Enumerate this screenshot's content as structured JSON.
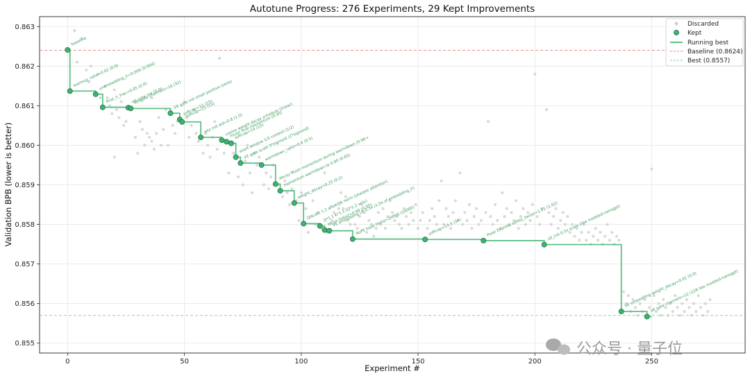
{
  "chart_data": {
    "type": "scatter",
    "title": "Autotune Progress: 276 Experiments, 29 Kept Improvements",
    "xlabel": "Experiment #",
    "ylabel": "Validation BPB (lower is better)",
    "xlim": [
      -12,
      290
    ],
    "ylim": [
      0.85475,
      0.86325
    ],
    "xticks": [
      0,
      50,
      100,
      150,
      200,
      250
    ],
    "yticks": [
      0.855,
      0.856,
      0.857,
      0.858,
      0.859,
      0.86,
      0.861,
      0.862,
      0.863
    ],
    "grid": true,
    "legend_position": "top-right",
    "legend": {
      "discarded": "Discarded",
      "kept": "Kept",
      "running_best": "Running best",
      "baseline": "Baseline (0.8624)",
      "best": "Best (0.8557)"
    },
    "baseline_value": 0.8624,
    "best_value": 0.8557,
    "colors": {
      "kept": "#3cb371",
      "running_best": "#5cbf86",
      "discarded": "#cccccc",
      "baseline_line": "#e88e8e",
      "best_line": "#7fcf9f"
    },
    "kept": [
      {
        "x": 0,
        "y": 0.86241,
        "label": "baseline"
      },
      {
        "x": 1,
        "y": 0.86137,
        "label": "warmup_ratio=0.02 (0.0)"
      },
      {
        "x": 12,
        "y": 0.86129,
        "label": "unembedding_lr=0.006 (0.004)"
      },
      {
        "x": 15,
        "y": 0.86096,
        "label": "final_lr_frac=0.05 (0.0)"
      },
      {
        "x": 26,
        "y": 0.86095,
        "label": "VE gate init (0.0)"
      },
      {
        "x": 27,
        "y": 0.86093,
        "label": "VE gate channels=16 (32)"
      },
      {
        "x": 44,
        "y": 0.86081,
        "label": "VE gate init small positive (sens)"
      },
      {
        "x": 48,
        "y": 0.86065,
        "label": "softcap=12 (15)"
      },
      {
        "x": 49,
        "y": 0.86059,
        "label": "softcap=15 (15)"
      },
      {
        "x": 57,
        "y": 0.8602,
        "label": "wte init std=0.8 (1.0)"
      },
      {
        "x": 66,
        "y": 0.86013,
        "label": "cosine weight decay schedule (linear)"
      },
      {
        "x": 68,
        "y": 0.86009,
        "label": "muon final momentum (0.95)"
      },
      {
        "x": 70,
        "y": 0.86005,
        "label": "softcap=14 (15)"
      },
      {
        "x": 72,
        "y": 0.8597,
        "label": "short window 1/3 context (1/2)"
      },
      {
        "x": 74,
        "y": 0.85955,
        "label": "VE gate scale 3*sigmoid (2*sigmoid)"
      },
      {
        "x": 83,
        "y": 0.8595,
        "label": "warmdown_ratio=0.6 (0.5)"
      },
      {
        "x": 89,
        "y": 0.85902,
        "label": "decay Muon momentum during warmdown (0.96→"
      },
      {
        "x": 91,
        "y": 0.85885,
        "label": "momentum warmdown to 0.90 (0.85)"
      },
      {
        "x": 97,
        "y": 0.85854,
        "label": "weight_decay=0.25 (0.2)"
      },
      {
        "x": 101,
        "y": 0.85802,
        "label": "Q scale 1.2 after QK norm (sharper attention)"
      },
      {
        "x": 108,
        "y": 0.85796,
        "label": "Q*1.1 K*1.1 (Q*1.2 only)"
      },
      {
        "x": 110,
        "y": 0.85786,
        "label": "Muon beta2=0.90 (0.95)"
      },
      {
        "x": 112,
        "y": 0.85784,
        "label": "VE embedding LR 0.5x (1.0x of embedding_lr)"
      },
      {
        "x": 122,
        "y": 0.85763,
        "label": "RoPE base theta=20000 (10000)"
      },
      {
        "x": 153,
        "y": 0.85762,
        "label": "softcap=14.5 (14)"
      },
      {
        "x": 178,
        "y": 0.85759,
        "label": "Polar Express safety_factor=1.01 (1.02)"
      },
      {
        "x": 204,
        "y": 0.85749,
        "label": "x0_init 0.5x scale (like modded-nanogpt)"
      },
      {
        "x": 237,
        "y": 0.8558,
        "label": "VE embedding weight_decay=0.01 (0.0)"
      },
      {
        "x": 248,
        "y": 0.85567,
        "label": "VE gate channels=12 (128 like modded-nanogpt)"
      }
    ],
    "discarded": [
      [
        3,
        0.8629
      ],
      [
        6,
        0.8627
      ],
      [
        4,
        0.8621
      ],
      [
        8,
        0.8619
      ],
      [
        9,
        0.8616
      ],
      [
        10,
        0.862
      ],
      [
        13,
        0.8618
      ],
      [
        14,
        0.8612
      ],
      [
        16,
        0.8615
      ],
      [
        17,
        0.8612
      ],
      [
        18,
        0.861
      ],
      [
        19,
        0.8608
      ],
      [
        20,
        0.8614
      ],
      [
        21,
        0.8609
      ],
      [
        22,
        0.8607
      ],
      [
        23,
        0.8611
      ],
      [
        24,
        0.8605
      ],
      [
        25,
        0.8606
      ],
      [
        29,
        0.8602
      ],
      [
        30,
        0.8598
      ],
      [
        31,
        0.8606
      ],
      [
        32,
        0.8604
      ],
      [
        33,
        0.86
      ],
      [
        34,
        0.8603
      ],
      [
        35,
        0.8602
      ],
      [
        36,
        0.8601
      ],
      [
        37,
        0.8599
      ],
      [
        38,
        0.8603
      ],
      [
        39,
        0.8607
      ],
      [
        40,
        0.86
      ],
      [
        41,
        0.8604
      ],
      [
        42,
        0.8609
      ],
      [
        43,
        0.86
      ],
      [
        45,
        0.8605
      ],
      [
        46,
        0.8603
      ],
      [
        47,
        0.8606
      ],
      [
        50,
        0.8611
      ],
      [
        51,
        0.8607
      ],
      [
        52,
        0.8602
      ],
      [
        53,
        0.8605
      ],
      [
        54,
        0.8609
      ],
      [
        55,
        0.8603
      ],
      [
        56,
        0.8601
      ],
      [
        58,
        0.8598
      ],
      [
        59,
        0.8603
      ],
      [
        60,
        0.86
      ],
      [
        61,
        0.8597
      ],
      [
        62,
        0.8602
      ],
      [
        63,
        0.8606
      ],
      [
        64,
        0.8599
      ],
      [
        65,
        0.8622
      ],
      [
        67,
        0.8598
      ],
      [
        69,
        0.8593
      ],
      [
        71,
        0.8598
      ],
      [
        73,
        0.8592
      ],
      [
        75,
        0.859
      ],
      [
        76,
        0.8596
      ],
      [
        77,
        0.86
      ],
      [
        78,
        0.8593
      ],
      [
        79,
        0.8588
      ],
      [
        80,
        0.8598
      ],
      [
        81,
        0.8595
      ],
      [
        82,
        0.8597
      ],
      [
        84,
        0.859
      ],
      [
        85,
        0.8593
      ],
      [
        86,
        0.8589
      ],
      [
        87,
        0.8592
      ],
      [
        88,
        0.8595
      ],
      [
        90,
        0.859
      ],
      [
        92,
        0.8587
      ],
      [
        93,
        0.8591
      ],
      [
        94,
        0.8588
      ],
      [
        95,
        0.8585
      ],
      [
        96,
        0.8589
      ],
      [
        98,
        0.8586
      ],
      [
        99,
        0.8581
      ],
      [
        100,
        0.8588
      ],
      [
        102,
        0.8584
      ],
      [
        103,
        0.8578
      ],
      [
        104,
        0.8582
      ],
      [
        105,
        0.8586
      ],
      [
        106,
        0.858
      ],
      [
        107,
        0.8583
      ],
      [
        109,
        0.8579
      ],
      [
        111,
        0.8578
      ],
      [
        113,
        0.8581
      ],
      [
        114,
        0.8583
      ],
      [
        115,
        0.8585
      ],
      [
        116,
        0.8584
      ],
      [
        117,
        0.8588
      ],
      [
        118,
        0.8584
      ],
      [
        119,
        0.8587
      ],
      [
        120,
        0.8581
      ],
      [
        121,
        0.858
      ],
      [
        123,
        0.858
      ],
      [
        124,
        0.8579
      ],
      [
        125,
        0.8582
      ],
      [
        126,
        0.8585
      ],
      [
        127,
        0.8583
      ],
      [
        128,
        0.8578
      ],
      [
        129,
        0.8581
      ],
      [
        130,
        0.858
      ],
      [
        131,
        0.8577
      ],
      [
        132,
        0.8579
      ],
      [
        133,
        0.8583
      ],
      [
        134,
        0.858
      ],
      [
        135,
        0.8584
      ],
      [
        136,
        0.8579
      ],
      [
        137,
        0.8582
      ],
      [
        138,
        0.8586
      ],
      [
        139,
        0.8583
      ],
      [
        140,
        0.8581
      ],
      [
        141,
        0.8582
      ],
      [
        142,
        0.858
      ],
      [
        143,
        0.8579
      ],
      [
        144,
        0.8584
      ],
      [
        145,
        0.8582
      ],
      [
        146,
        0.858
      ],
      [
        147,
        0.8583
      ],
      [
        148,
        0.8581
      ],
      [
        149,
        0.8585
      ],
      [
        150,
        0.8579
      ],
      [
        151,
        0.8581
      ],
      [
        152,
        0.8583
      ],
      [
        154,
        0.8579
      ],
      [
        155,
        0.8581
      ],
      [
        156,
        0.8584
      ],
      [
        157,
        0.8582
      ],
      [
        158,
        0.858
      ],
      [
        159,
        0.8586
      ],
      [
        160,
        0.8591
      ],
      [
        161,
        0.858
      ],
      [
        162,
        0.8584
      ],
      [
        163,
        0.8582
      ],
      [
        164,
        0.8579
      ],
      [
        165,
        0.8583
      ],
      [
        166,
        0.8586
      ],
      [
        167,
        0.8581
      ],
      [
        168,
        0.8593
      ],
      [
        169,
        0.858
      ],
      [
        170,
        0.8583
      ],
      [
        171,
        0.8581
      ],
      [
        172,
        0.8585
      ],
      [
        173,
        0.8579
      ],
      [
        174,
        0.8582
      ],
      [
        175,
        0.8584
      ],
      [
        176,
        0.858
      ],
      [
        177,
        0.8581
      ],
      [
        179,
        0.8583
      ],
      [
        180,
        0.8606
      ],
      [
        181,
        0.8582
      ],
      [
        182,
        0.858
      ],
      [
        183,
        0.8585
      ],
      [
        184,
        0.8581
      ],
      [
        185,
        0.8579
      ],
      [
        186,
        0.8588
      ],
      [
        187,
        0.8582
      ],
      [
        188,
        0.8584
      ],
      [
        189,
        0.858
      ],
      [
        190,
        0.8583
      ],
      [
        191,
        0.8581
      ],
      [
        192,
        0.8586
      ],
      [
        193,
        0.8579
      ],
      [
        194,
        0.8582
      ],
      [
        195,
        0.8584
      ],
      [
        196,
        0.858
      ],
      [
        197,
        0.8583
      ],
      [
        198,
        0.8581
      ],
      [
        199,
        0.8585
      ],
      [
        200,
        0.8618
      ],
      [
        201,
        0.8582
      ],
      [
        202,
        0.858
      ],
      [
        203,
        0.8584
      ],
      [
        205,
        0.8609
      ],
      [
        206,
        0.8583
      ],
      [
        207,
        0.858
      ],
      [
        208,
        0.8582
      ],
      [
        209,
        0.8584
      ],
      [
        210,
        0.8579
      ],
      [
        211,
        0.8581
      ],
      [
        212,
        0.8583
      ],
      [
        213,
        0.858
      ],
      [
        214,
        0.8582
      ],
      [
        215,
        0.8578
      ],
      [
        216,
        0.858
      ],
      [
        217,
        0.8577
      ],
      [
        218,
        0.8579
      ],
      [
        219,
        0.8576
      ],
      [
        220,
        0.8578
      ],
      [
        221,
        0.858
      ],
      [
        222,
        0.8576
      ],
      [
        223,
        0.8578
      ],
      [
        224,
        0.8575
      ],
      [
        225,
        0.8577
      ],
      [
        226,
        0.8579
      ],
      [
        227,
        0.8576
      ],
      [
        228,
        0.8578
      ],
      [
        229,
        0.8575
      ],
      [
        230,
        0.8577
      ],
      [
        231,
        0.858
      ],
      [
        232,
        0.8576
      ],
      [
        233,
        0.8578
      ],
      [
        234,
        0.8575
      ],
      [
        235,
        0.8577
      ],
      [
        236,
        0.8576
      ],
      [
        238,
        0.8563
      ],
      [
        239,
        0.856
      ],
      [
        240,
        0.8562
      ],
      [
        241,
        0.8558
      ],
      [
        242,
        0.8561
      ],
      [
        243,
        0.8559
      ],
      [
        244,
        0.8557
      ],
      [
        245,
        0.856
      ],
      [
        246,
        0.8558
      ],
      [
        247,
        0.8561
      ],
      [
        249,
        0.8559
      ],
      [
        250,
        0.8594
      ],
      [
        251,
        0.8562
      ],
      [
        252,
        0.8558
      ],
      [
        253,
        0.856
      ],
      [
        254,
        0.8557
      ],
      [
        255,
        0.8561
      ],
      [
        256,
        0.8559
      ],
      [
        257,
        0.8557
      ],
      [
        258,
        0.856
      ],
      [
        259,
        0.8558
      ],
      [
        260,
        0.8562
      ],
      [
        261,
        0.8559
      ],
      [
        262,
        0.8557
      ],
      [
        263,
        0.856
      ],
      [
        264,
        0.8558
      ],
      [
        265,
        0.8561
      ],
      [
        266,
        0.8559
      ],
      [
        267,
        0.8557
      ],
      [
        268,
        0.856
      ],
      [
        269,
        0.8558
      ],
      [
        270,
        0.8562
      ],
      [
        271,
        0.8559
      ],
      [
        272,
        0.8557
      ],
      [
        273,
        0.856
      ],
      [
        274,
        0.8558
      ],
      [
        275,
        0.8561
      ],
      [
        20,
        0.8597
      ],
      [
        110,
        0.8593
      ],
      [
        36,
        0.8612
      ]
    ]
  },
  "watermark": "公众号 · 量子位"
}
